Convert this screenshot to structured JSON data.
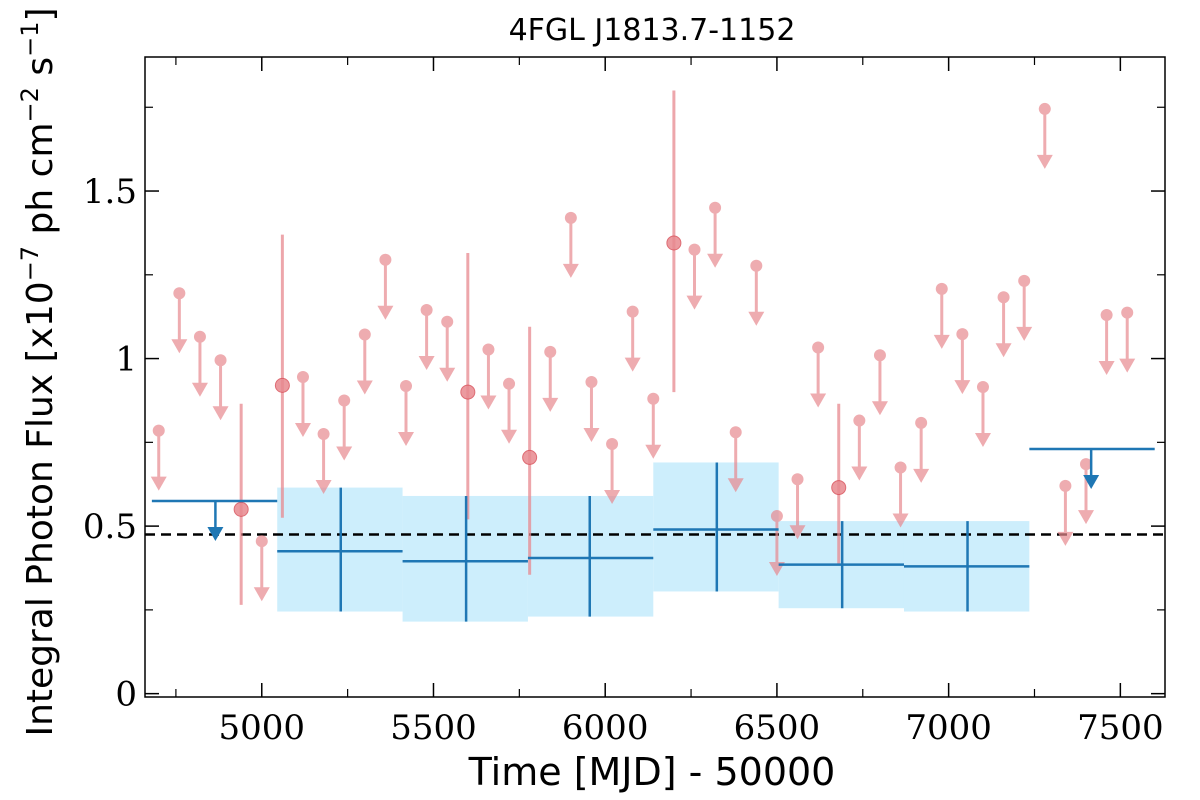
{
  "chart_data": {
    "type": "scatter",
    "title": "4FGL J1813.7-1152",
    "xlabel": "Time [MJD] - 50000",
    "ylabel": {
      "main": "Integral Photon Flux [x10",
      "exp1": "−7",
      "mid": " ph cm",
      "exp2": "−2",
      "mid2": " s",
      "exp3": "−1",
      "end": "]"
    },
    "xlim": [
      4660,
      7630
    ],
    "ylim": [
      -0.01,
      1.9
    ],
    "xticks": [
      5000,
      5500,
      6000,
      6500,
      7000,
      7500
    ],
    "xtick_labels": [
      "5000",
      "5500",
      "6000",
      "6500",
      "7000",
      "7500"
    ],
    "yticks": [
      0,
      0.5,
      1,
      1.5
    ],
    "ytick_labels": [
      "0",
      "0.5",
      "1",
      "1.5"
    ],
    "reference_line": 0.475,
    "colors": {
      "short_bins": "#e8898f",
      "long_bins": "#1f77b4",
      "band": "#cdeefc",
      "reference": "#000000"
    },
    "short_bins_upper_limits": [
      {
        "x": 4700,
        "y": 0.785
      },
      {
        "x": 4760,
        "y": 1.195
      },
      {
        "x": 4820,
        "y": 1.065
      },
      {
        "x": 4880,
        "y": 0.995
      },
      {
        "x": 5000,
        "y": 0.455
      },
      {
        "x": 5120,
        "y": 0.945
      },
      {
        "x": 5180,
        "y": 0.775
      },
      {
        "x": 5240,
        "y": 0.875
      },
      {
        "x": 5300,
        "y": 1.072
      },
      {
        "x": 5360,
        "y": 1.295
      },
      {
        "x": 5420,
        "y": 0.918
      },
      {
        "x": 5480,
        "y": 1.145
      },
      {
        "x": 5540,
        "y": 1.11
      },
      {
        "x": 5660,
        "y": 1.027
      },
      {
        "x": 5720,
        "y": 0.925
      },
      {
        "x": 5840,
        "y": 1.02
      },
      {
        "x": 5900,
        "y": 1.42
      },
      {
        "x": 5960,
        "y": 0.93
      },
      {
        "x": 6020,
        "y": 0.745
      },
      {
        "x": 6080,
        "y": 1.14
      },
      {
        "x": 6140,
        "y": 0.88
      },
      {
        "x": 6260,
        "y": 1.325
      },
      {
        "x": 6320,
        "y": 1.45
      },
      {
        "x": 6380,
        "y": 0.78
      },
      {
        "x": 6440,
        "y": 1.277
      },
      {
        "x": 6500,
        "y": 0.53
      },
      {
        "x": 6560,
        "y": 0.64
      },
      {
        "x": 6620,
        "y": 1.033
      },
      {
        "x": 6740,
        "y": 0.815
      },
      {
        "x": 6800,
        "y": 1.01
      },
      {
        "x": 6860,
        "y": 0.675
      },
      {
        "x": 6920,
        "y": 0.808
      },
      {
        "x": 6980,
        "y": 1.208
      },
      {
        "x": 7040,
        "y": 1.073
      },
      {
        "x": 7100,
        "y": 0.915
      },
      {
        "x": 7160,
        "y": 1.183
      },
      {
        "x": 7220,
        "y": 1.232
      },
      {
        "x": 7280,
        "y": 1.745
      },
      {
        "x": 7340,
        "y": 0.62
      },
      {
        "x": 7400,
        "y": 0.685
      },
      {
        "x": 7460,
        "y": 1.13
      },
      {
        "x": 7520,
        "y": 1.137
      }
    ],
    "short_bins_detections": [
      {
        "x": 4940,
        "y": 0.55,
        "ylo": 0.265,
        "yhi": 0.865
      },
      {
        "x": 5060,
        "y": 0.92,
        "ylo": 0.525,
        "yhi": 1.37
      },
      {
        "x": 5600,
        "y": 0.9,
        "ylo": 0.52,
        "yhi": 1.315
      },
      {
        "x": 5780,
        "y": 0.705,
        "ylo": 0.355,
        "yhi": 1.095
      },
      {
        "x": 6200,
        "y": 1.345,
        "ylo": 0.9,
        "yhi": 1.8
      },
      {
        "x": 6680,
        "y": 0.615,
        "ylo": 0.385,
        "yhi": 0.865
      }
    ],
    "long_bins_detections": [
      {
        "x0": 5045,
        "x1": 5410,
        "x": 5230,
        "y": 0.425,
        "ylo": 0.245,
        "yhi": 0.615
      },
      {
        "x0": 5410,
        "x1": 5775,
        "x": 5595,
        "y": 0.395,
        "ylo": 0.215,
        "yhi": 0.59
      },
      {
        "x0": 5775,
        "x1": 6140,
        "x": 5955,
        "y": 0.405,
        "ylo": 0.23,
        "yhi": 0.59
      },
      {
        "x0": 6140,
        "x1": 6505,
        "x": 6325,
        "y": 0.49,
        "ylo": 0.305,
        "yhi": 0.69
      },
      {
        "x0": 6505,
        "x1": 6870,
        "x": 6690,
        "y": 0.385,
        "ylo": 0.255,
        "yhi": 0.515
      },
      {
        "x0": 6870,
        "x1": 7235,
        "x": 7055,
        "y": 0.38,
        "ylo": 0.245,
        "yhi": 0.515
      }
    ],
    "long_bins_bands": [
      {
        "x0": 5045,
        "x1": 5410,
        "ylo": 0.245,
        "yhi": 0.615
      },
      {
        "x0": 5410,
        "x1": 5775,
        "ylo": 0.215,
        "yhi": 0.59
      },
      {
        "x0": 5775,
        "x1": 6140,
        "ylo": 0.23,
        "yhi": 0.59
      },
      {
        "x0": 6140,
        "x1": 6505,
        "ylo": 0.305,
        "yhi": 0.69
      },
      {
        "x0": 6505,
        "x1": 6870,
        "ylo": 0.255,
        "yhi": 0.515
      },
      {
        "x0": 6870,
        "x1": 7235,
        "ylo": 0.245,
        "yhi": 0.515
      }
    ],
    "long_bins_upper_limits": [
      {
        "x0": 4680,
        "x1": 5045,
        "x": 4865,
        "y": 0.575
      },
      {
        "x0": 7235,
        "x1": 7600,
        "x": 7415,
        "y": 0.73
      }
    ]
  }
}
